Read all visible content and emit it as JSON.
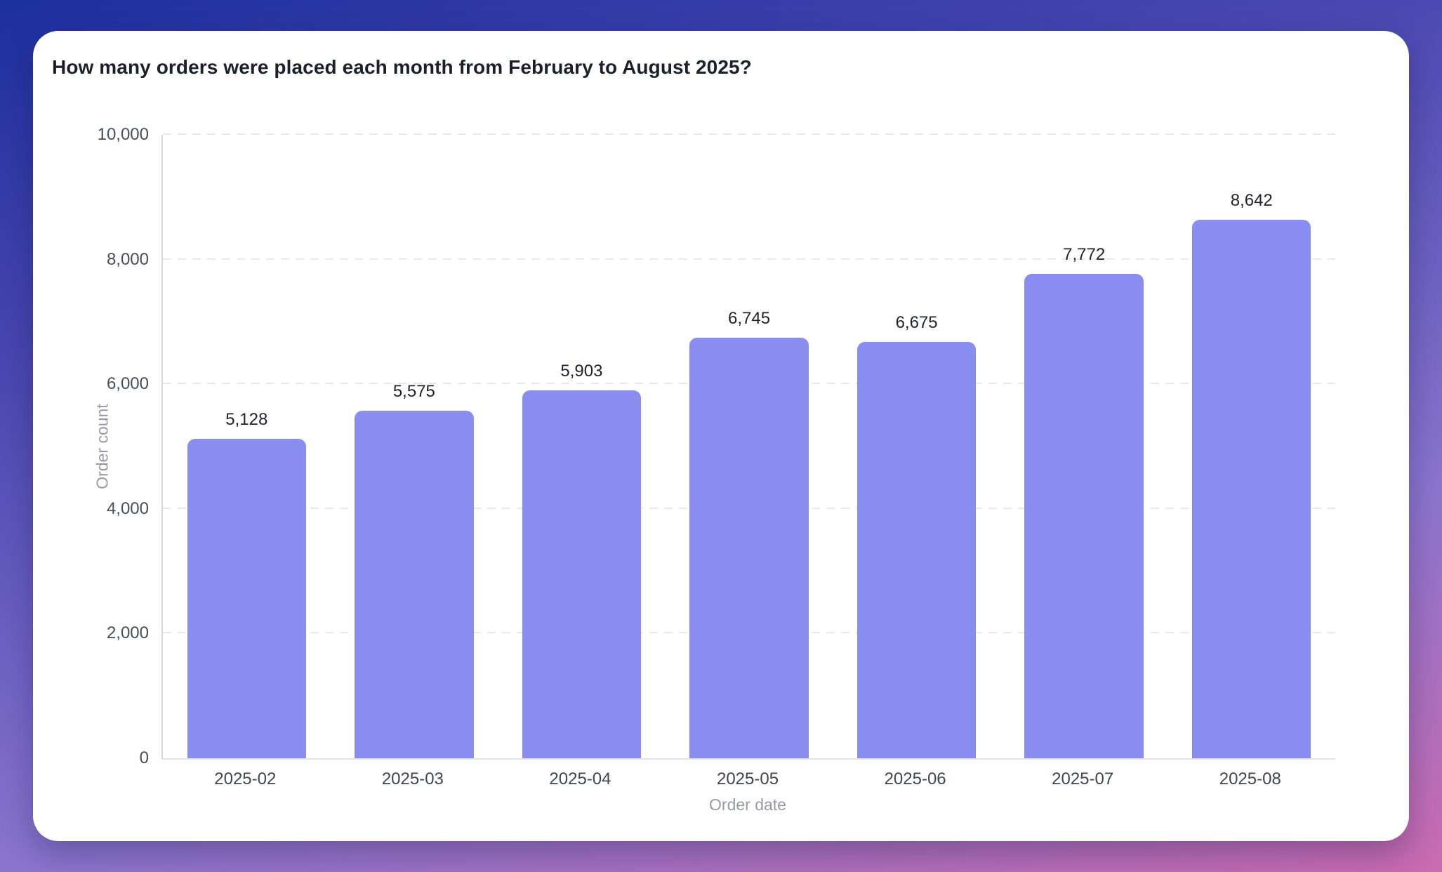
{
  "card": {
    "title": "How many orders were placed each month from February to August 2025?"
  },
  "chart_data": {
    "type": "bar",
    "title": "How many orders were placed each month from February to August 2025?",
    "categories": [
      "2025-02",
      "2025-03",
      "2025-04",
      "2025-05",
      "2025-06",
      "2025-07",
      "2025-08"
    ],
    "values": [
      5128,
      5575,
      5903,
      6745,
      6675,
      7772,
      8642
    ],
    "value_labels": [
      "5,128",
      "5,575",
      "5,903",
      "6,745",
      "6,675",
      "7,772",
      "8,642"
    ],
    "xlabel": "Order date",
    "ylabel": "Order count",
    "ylim": [
      0,
      10000
    ],
    "yticks": [
      0,
      2000,
      4000,
      6000,
      8000,
      10000
    ],
    "ytick_labels": [
      "0",
      "2,000",
      "4,000",
      "6,000",
      "8,000",
      "10,000"
    ],
    "grid": "horizontal-dashed",
    "legend": "none",
    "bar_color": "#8a8df0"
  },
  "colors": {
    "background_gradient": [
      "#1d2f9f",
      "#4c49b2",
      "#8a75cf",
      "#cb6bb0"
    ],
    "card_background": "#ffffff",
    "bar": "#8a8df0",
    "title_text": "#1b212c",
    "tick_text": "#474e5c",
    "axis_title_text": "#949aa5",
    "value_label_text": "#1d2430",
    "gridline": "#e8e9ee",
    "axis_line": "#d5d7de"
  }
}
